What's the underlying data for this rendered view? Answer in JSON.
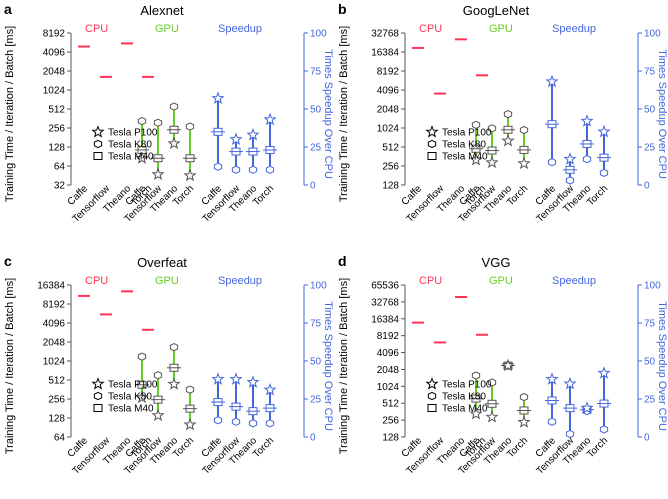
{
  "figure": {
    "ylabel_left": "Training Time / Iteration / Batch [ms]",
    "ylabel_right": "Times Speedup Over CPU",
    "group_labels": {
      "cpu": "CPU",
      "gpu": "GPU",
      "speedup": "Speedup"
    },
    "frameworks": [
      "Caffe",
      "Tensorflow",
      "Theano",
      "Torch"
    ],
    "legend": [
      "Tesla P100",
      "Tesla K80",
      "Tesla M40"
    ],
    "colors": {
      "cpu": "#ff3355",
      "gpu": "#66cc22",
      "speedup": "#4466dd",
      "axis": "#555555",
      "right_axis": "#4466dd"
    }
  },
  "chart_data": [
    {
      "type": "scatter",
      "panel": "a",
      "title": "Alexnet",
      "left_ticks": [
        "32",
        "64",
        "128",
        "256",
        "512",
        "1024",
        "2048",
        "4096",
        "8192"
      ],
      "right_ticks": [
        "0",
        "25",
        "50",
        "75",
        "100"
      ],
      "ylim_log2": [
        5,
        13
      ],
      "ylim_right": [
        0,
        100
      ],
      "cpu": [
        5000,
        1650,
        5600,
        1650
      ],
      "gpu": {
        "p100": [
          85,
          47,
          145,
          45
        ],
        "k80": [
          330,
          310,
          560,
          270
        ],
        "m40": [
          115,
          85,
          240,
          85
        ]
      },
      "speedup": {
        "p100": [
          57,
          30,
          33,
          43
        ],
        "k80": [
          12,
          10,
          10,
          10
        ],
        "m40": [
          35,
          22,
          22,
          23
        ]
      }
    },
    {
      "type": "scatter",
      "panel": "b",
      "title": "GoogLeNet",
      "left_ticks": [
        "128",
        "256",
        "512",
        "1024",
        "2048",
        "4096",
        "8192",
        "16384",
        "32768"
      ],
      "right_ticks": [
        "0",
        "25",
        "50",
        "75",
        "100"
      ],
      "ylim_log2": [
        7,
        15
      ],
      "ylim_right": [
        0,
        100
      ],
      "cpu": [
        19000,
        3600,
        26000,
        7000
      ],
      "gpu": {
        "p100": [
          320,
          290,
          640,
          280
        ],
        "k80": [
          1150,
          1010,
          1700,
          950
        ],
        "m40": [
          480,
          450,
          960,
          460
        ]
      },
      "speedup": {
        "p100": [
          68,
          17,
          42,
          35
        ],
        "k80": [
          15,
          3,
          17,
          8
        ],
        "m40": [
          40,
          10,
          27,
          18
        ]
      }
    },
    {
      "type": "scatter",
      "panel": "c",
      "title": "Overfeat",
      "left_ticks": [
        "64",
        "128",
        "256",
        "512",
        "1024",
        "2048",
        "4096",
        "8192",
        "16384"
      ],
      "right_ticks": [
        "0",
        "25",
        "50",
        "75",
        "100"
      ],
      "ylim_log2": [
        6,
        14
      ],
      "ylim_right": [
        0,
        100
      ],
      "cpu": [
        11000,
        5600,
        13000,
        3200
      ],
      "gpu": {
        "p100": [
          270,
          140,
          440,
          100
        ],
        "k80": [
          1200,
          610,
          1700,
          360
        ],
        "m40": [
          430,
          250,
          800,
          180
        ]
      },
      "speedup": {
        "p100": [
          38,
          38,
          36,
          31
        ],
        "k80": [
          11,
          10,
          9,
          9
        ],
        "m40": [
          23,
          20,
          17,
          19
        ]
      }
    },
    {
      "type": "scatter",
      "panel": "d",
      "title": "VGG",
      "left_ticks": [
        "128",
        "256",
        "512",
        "1024",
        "2048",
        "4096",
        "8192",
        "16384",
        "32768",
        "65536"
      ],
      "right_ticks": [
        "0",
        "25",
        "50",
        "75",
        "100"
      ],
      "ylim_log2": [
        7,
        16
      ],
      "ylim_right": [
        0,
        100
      ],
      "cpu": [
        14000,
        6200,
        40000,
        8500
      ],
      "gpu": {
        "p100": [
          330,
          290,
          2400,
          235
        ],
        "k80": [
          1600,
          1200,
          2400,
          660
        ],
        "m40": [
          620,
          500,
          2400,
          380
        ]
      },
      "speedup": {
        "p100": [
          38,
          35,
          19,
          42
        ],
        "k80": [
          10,
          2,
          17,
          5
        ],
        "m40": [
          24,
          19,
          18,
          22
        ]
      }
    }
  ]
}
